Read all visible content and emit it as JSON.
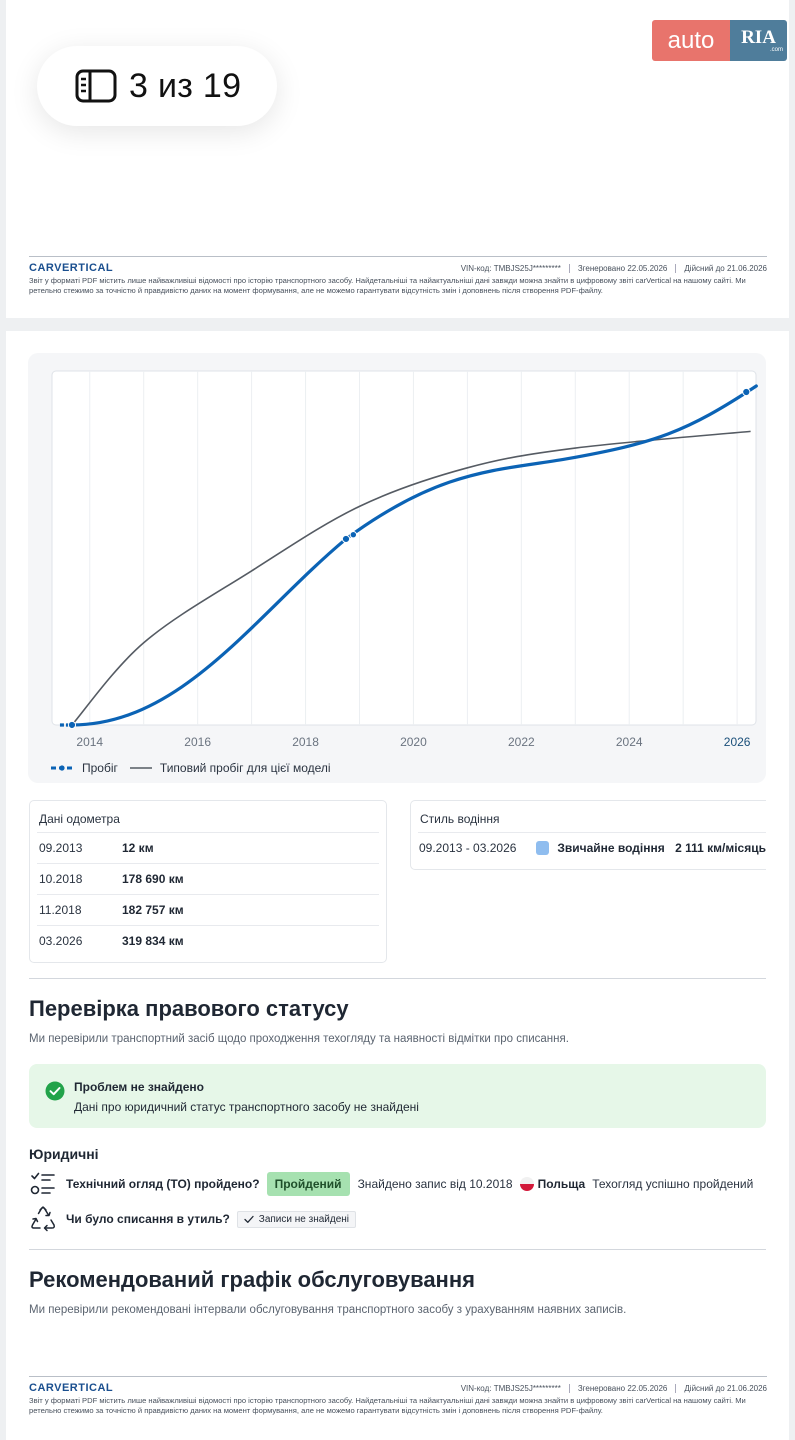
{
  "pager": {
    "text": "3 из 19",
    "icon": "sidebar-panel-icon"
  },
  "logo": {
    "auto": "auto",
    "ria": "RIA",
    "com": ".com"
  },
  "footer": {
    "brand": "CARVERTICAL",
    "vin": "VIN-код:  TMBJS25J*********",
    "generated": "Згенеровано  22.05.2026",
    "valid": "Дійсний до  21.06.2026",
    "disclaimer": "Звіт у форматі PDF містить лише найважливіші відомості про історію транспортного засобу. Найдетальніші та найактуальніші дані завжди можна знайти в цифровому звіті carVertical на нашому сайті. Ми ретельно стежимо за точністю й правдивістю даних на момент формування, але не можемо гарантувати відсутність змін і доповнень після створення PDF-файлу."
  },
  "chart_data": {
    "type": "line",
    "x_ticks": [
      "2014",
      "2016",
      "2018",
      "2020",
      "2022",
      "2024",
      "2026"
    ],
    "series": [
      {
        "name": "Пробіг",
        "color": "#0b63b5",
        "points": [
          [
            2013.67,
            12
          ],
          [
            2018.75,
            178690
          ],
          [
            2018.83,
            182757
          ],
          [
            2026.17,
            319834
          ]
        ]
      },
      {
        "name": "Типовий пробіг для цієї моделі",
        "color": "#555b63",
        "points": [
          [
            2013.67,
            12
          ],
          [
            2015,
            79000
          ],
          [
            2017,
            148000
          ],
          [
            2019,
            210000
          ],
          [
            2021,
            247000
          ],
          [
            2023,
            266000
          ],
          [
            2026.25,
            282000
          ]
        ]
      }
    ],
    "legend": [
      "Пробіг",
      "Типовий пробіг для цієї моделі"
    ],
    "legend_position": "bottom-left",
    "grid": true,
    "highlighted_tick": "2026"
  },
  "odometer": {
    "title": "Дані одометра",
    "rows": [
      {
        "date": "09.2013",
        "value": "12 км"
      },
      {
        "date": "10.2018",
        "value": "178 690 км"
      },
      {
        "date": "11.2018",
        "value": "182 757 км"
      },
      {
        "date": "03.2026",
        "value": "319 834 км"
      }
    ]
  },
  "driving_style": {
    "title": "Стиль водіння",
    "period": "09.2013 - 03.2026",
    "type": "Звичайне водіння",
    "km": "2 111 км/місяць",
    "color": "#8fbdef"
  },
  "legal_status": {
    "title": "Перевірка правового статусу",
    "subtitle": "Ми перевірили транспортний засіб щодо проходження техогляду та наявності відмітки про списання.",
    "status_title": "Проблем не знайдено",
    "status_text": "Дані про юридичний статус транспортного засобу не знайдені",
    "legal_heading": "Юридичні",
    "inspection": {
      "question": "Технічний огляд (ТО) пройдено?",
      "badge": "Пройдений",
      "found": "Знайдено запис від 10.2018",
      "country": "Польща",
      "result": "Техогляд успішно пройдений"
    },
    "scrap": {
      "question": "Чи було списання в утиль?",
      "badge": "Записи не знайдені"
    }
  },
  "maintenance": {
    "title": "Рекомендований графік обслуговування",
    "subtitle": "Ми перевірили рекомендовані інтервали обслуговування транспортного засобу з урахуванням наявних записів."
  }
}
